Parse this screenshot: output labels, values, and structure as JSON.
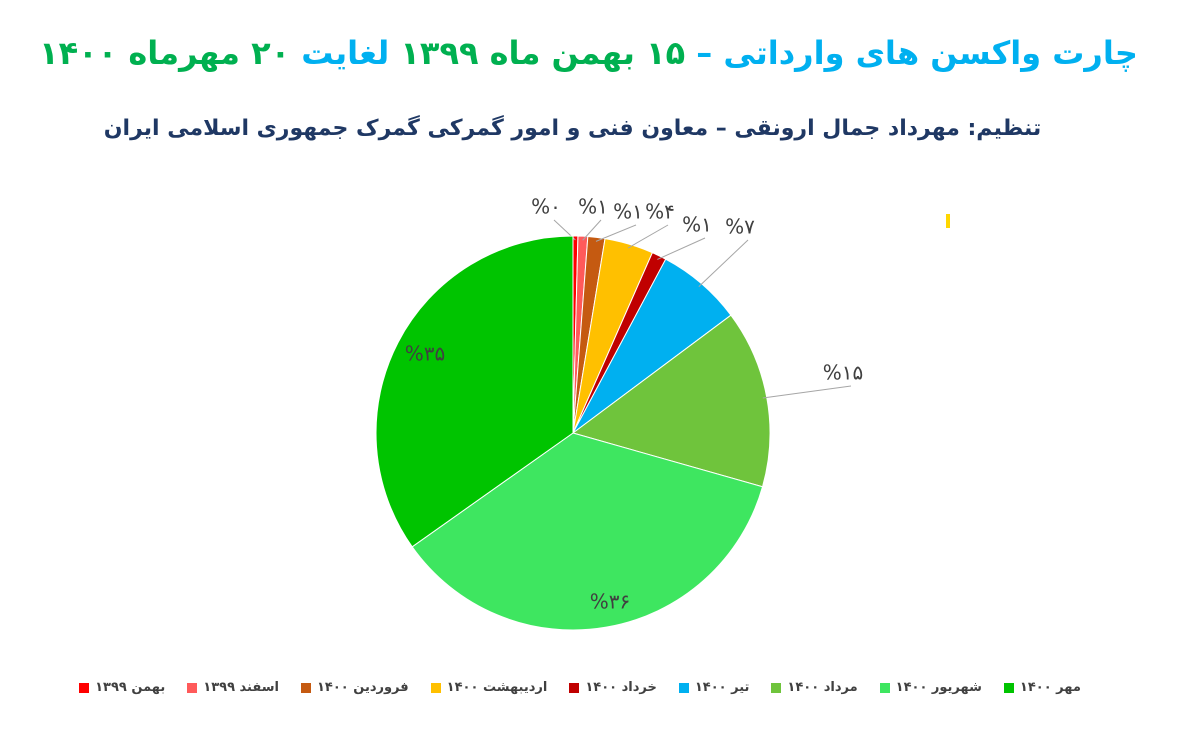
{
  "chart_data": {
    "type": "pie",
    "title": [
      {
        "text": "چارت واکسن های وارداتی –",
        "color": "#00b0f0"
      },
      {
        "text": "۱۵ بهمن ماه ۱۳۹۹",
        "color": "#00b050"
      },
      {
        "text": "لغایت",
        "color": "#00b0f0"
      },
      {
        "text": "۲۰ مهرماه ۱۴۰۰",
        "color": "#00b050"
      }
    ],
    "subtitle": "تنظیم: مهرداد جمال ارونقی – معاون فنی و امور گمرکی گمرک جمهوری اسلامی ایران",
    "categories": [
      "بهمن ۱۳۹۹",
      "اسفند ۱۳۹۹",
      "فروردین ۱۴۰۰",
      "اردیبهشت ۱۴۰۰",
      "خرداد ۱۴۰۰",
      "تیر ۱۴۰۰",
      "مرداد ۱۴۰۰",
      "شهریور ۱۴۰۰",
      "مهر ۱۴۰۰"
    ],
    "values": [
      0.4,
      0.8,
      1.4,
      4,
      1.2,
      7,
      14.6,
      35.8,
      34.8
    ],
    "value_labels": [
      "%۰",
      "%۱",
      "%۱",
      "%۴",
      "%۱",
      "%۷",
      "%۱۵",
      "%۳۶",
      "%۳۵"
    ],
    "colors": [
      "#ff0000",
      "#ff5a5a",
      "#c55a11",
      "#ffc000",
      "#c00000",
      "#00b0f0",
      "#6fc43c",
      "#3ee660",
      "#00c400"
    ]
  }
}
